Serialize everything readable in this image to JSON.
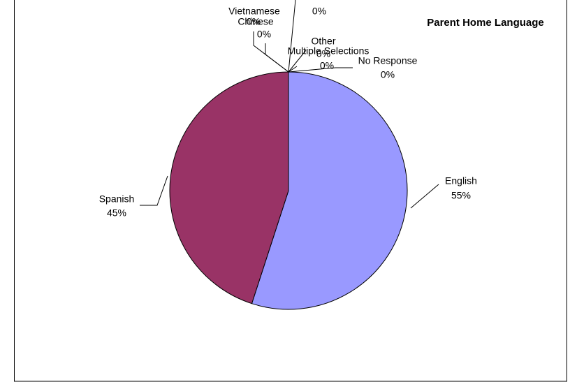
{
  "chart_data": {
    "type": "pie",
    "title": "Parent Home Language",
    "categories": [
      "English",
      "Spanish",
      "Vietnamese",
      "Chinese",
      null,
      "Other",
      "Multiple Selections",
      "No Response"
    ],
    "values": [
      55,
      45,
      0,
      0,
      0,
      0,
      0,
      0
    ],
    "value_labels": [
      "55%",
      "45%",
      "0%",
      "0%",
      "0%",
      "0%",
      "0%",
      "0%"
    ],
    "colors": [
      "#9999ff",
      "#993366",
      "#ffffcc",
      "#ccffff",
      "#660066",
      "#ff8080",
      "#0066cc",
      "#ccccff"
    ]
  }
}
